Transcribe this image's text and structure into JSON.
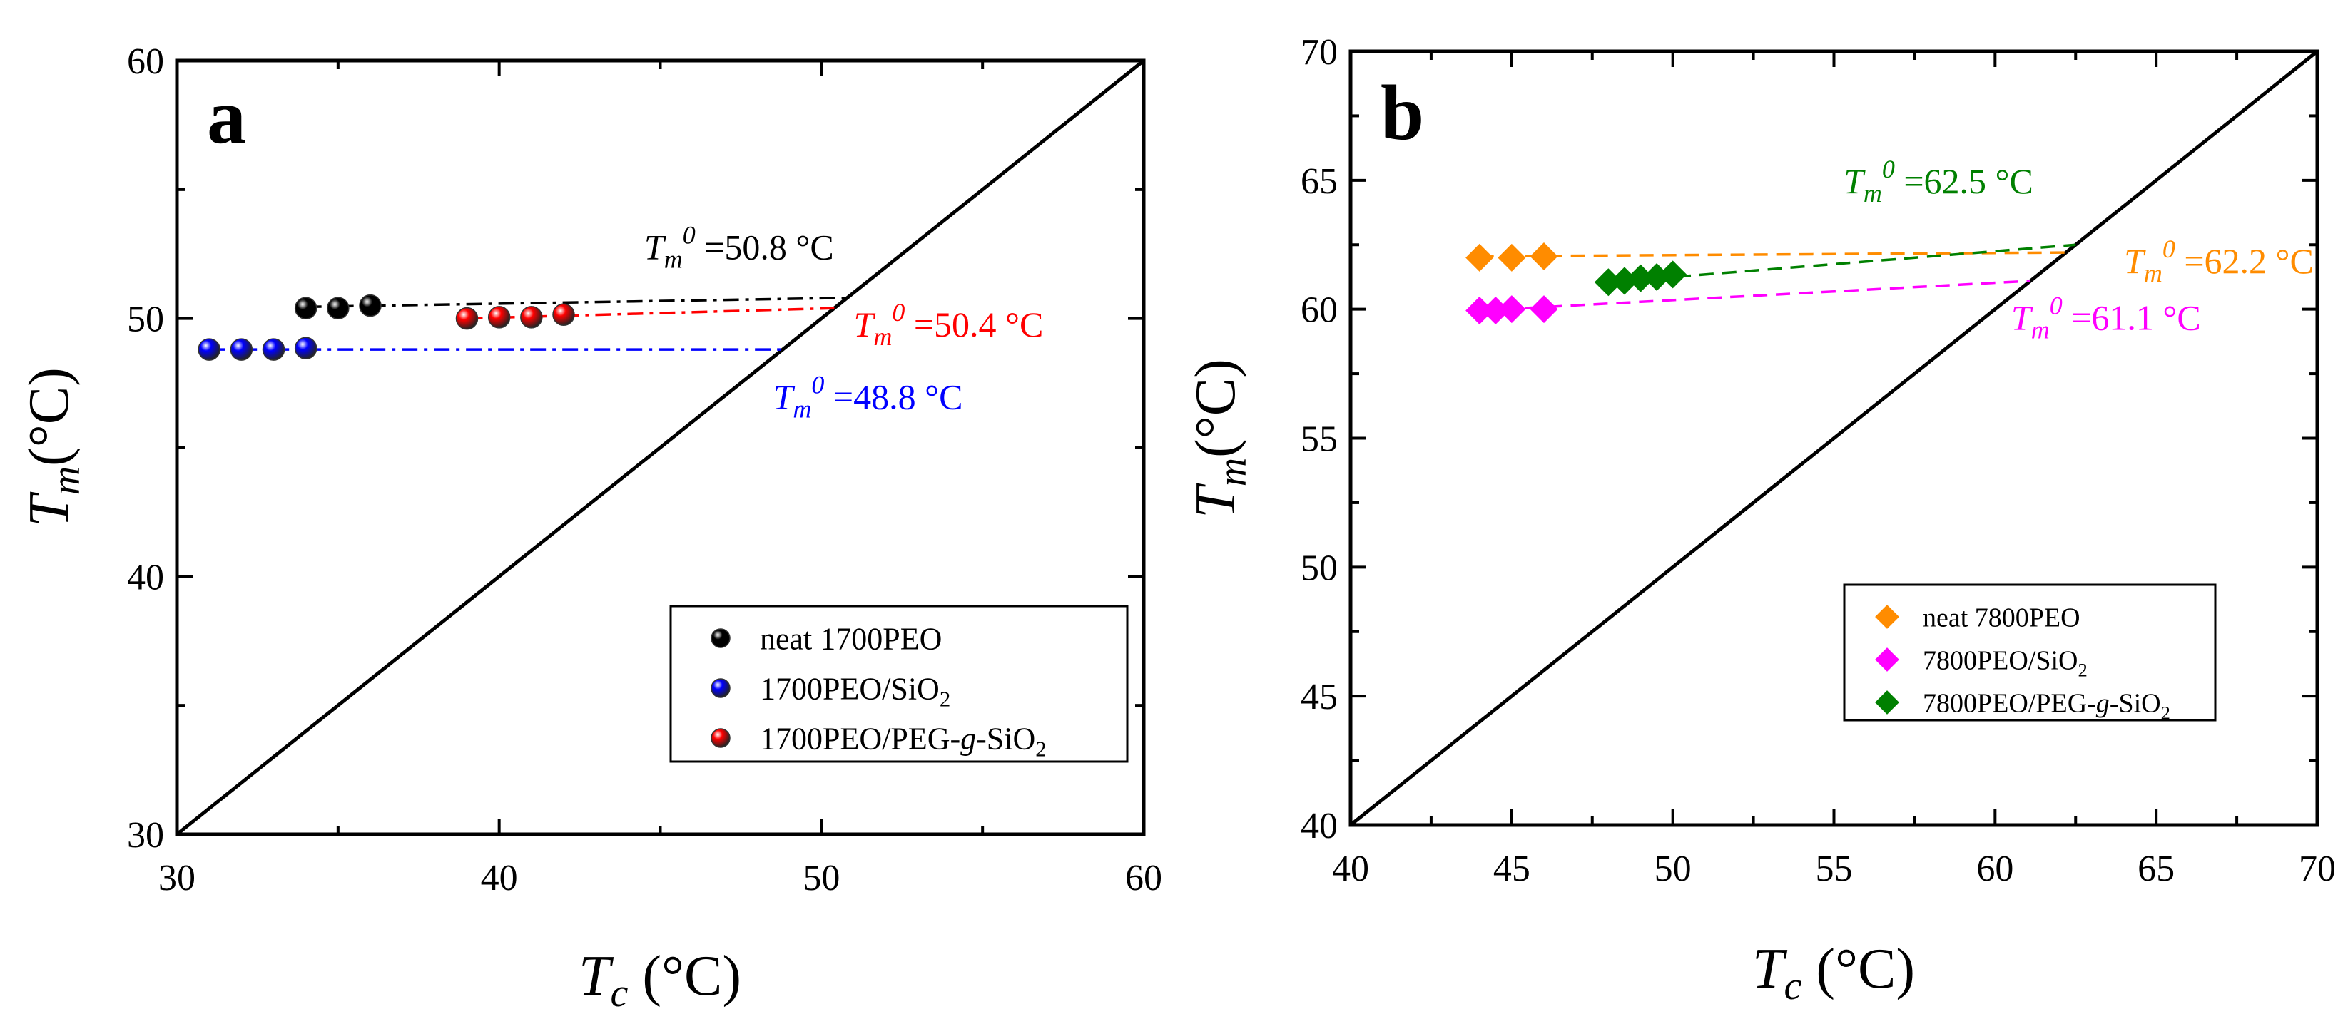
{
  "chart_data": [
    {
      "type": "scatter",
      "panel_label": "a",
      "xlabel": {
        "main": "T",
        "sub": "c",
        "rest": " (°C)"
      },
      "ylabel": {
        "main": "T",
        "sub": "m",
        "rest": "(°C)"
      },
      "xlim": [
        30,
        60
      ],
      "ylim": [
        30,
        60
      ],
      "xticks": [
        30,
        40,
        50,
        60
      ],
      "yticks": [
        30,
        40,
        50,
        60
      ],
      "diagonal": true,
      "grid": false,
      "legend_position": "lower-right",
      "series": [
        {
          "name": {
            "pre": "neat 1700PEO",
            "italic": "",
            "post": "",
            "sub": ""
          },
          "color": "#000000",
          "marker": "sphere",
          "points": [
            [
              34,
              50.4
            ],
            [
              35,
              50.4
            ],
            [
              36,
              50.5
            ]
          ],
          "fit": {
            "x": [
              34,
              50.8
            ],
            "y": [
              50.45,
              50.8
            ],
            "dash": "dashdot"
          }
        },
        {
          "name": {
            "pre": "1700PEO/SiO",
            "italic": "",
            "post": "",
            "sub": "2"
          },
          "color": "#0000ff",
          "marker": "sphere",
          "points": [
            [
              31,
              48.8
            ],
            [
              32,
              48.8
            ],
            [
              33,
              48.8
            ],
            [
              34,
              48.85
            ]
          ],
          "fit": {
            "x": [
              31,
              48.8
            ],
            "y": [
              48.8,
              48.8
            ],
            "dash": "dashdot"
          }
        },
        {
          "name": {
            "pre": "1700PEO/PEG-",
            "italic": "g",
            "post": "-SiO",
            "sub": "2"
          },
          "color": "#ff0000",
          "marker": "sphere",
          "points": [
            [
              39,
              50.0
            ],
            [
              40,
              50.05
            ],
            [
              41,
              50.05
            ],
            [
              42,
              50.15
            ]
          ],
          "fit": {
            "x": [
              39,
              50.4
            ],
            "y": [
              50.0,
              50.4
            ],
            "dash": "dashdot"
          }
        }
      ],
      "annotations": [
        {
          "prefix": "T",
          "sub": "m",
          "sup": "0",
          "value": "=50.8 °C",
          "color": "#000000",
          "x": 44.5,
          "y": 52.3
        },
        {
          "prefix": "T",
          "sub": "m",
          "sup": "0",
          "value": "=50.4 °C",
          "color": "#ff0000",
          "x": 51.0,
          "y": 49.3
        },
        {
          "prefix": "T",
          "sub": "m",
          "sup": "0",
          "value": "=48.8 °C",
          "color": "#0000ff",
          "x": 48.5,
          "y": 46.5
        }
      ]
    },
    {
      "type": "scatter",
      "panel_label": "b",
      "xlabel": {
        "main": "T",
        "sub": "c",
        "rest": " (°C)"
      },
      "ylabel": {
        "main": "T",
        "sub": "m",
        "rest": "(°C)"
      },
      "xlim": [
        40,
        70
      ],
      "ylim": [
        40,
        70
      ],
      "xticks": [
        40,
        45,
        50,
        55,
        60,
        65,
        70
      ],
      "yticks": [
        40,
        45,
        50,
        55,
        60,
        65,
        70
      ],
      "diagonal": true,
      "grid": false,
      "legend_position": "lower-right",
      "series": [
        {
          "name": {
            "pre": "neat 7800PEO",
            "italic": "",
            "post": "",
            "sub": ""
          },
          "color": "#ff8c00",
          "marker": "diamond",
          "points": [
            [
              44,
              62.0
            ],
            [
              45,
              62.0
            ],
            [
              46,
              62.05
            ]
          ],
          "fit": {
            "x": [
              44,
              62.2
            ],
            "y": [
              62.05,
              62.2
            ],
            "dash": "dash"
          }
        },
        {
          "name": {
            "pre": "7800PEO/SiO",
            "italic": "",
            "post": "",
            "sub": "2"
          },
          "color": "#ff00ff",
          "marker": "diamond",
          "points": [
            [
              44,
              59.95
            ],
            [
              44.5,
              59.95
            ],
            [
              45,
              60.0
            ],
            [
              46,
              60.0
            ]
          ],
          "fit": {
            "x": [
              44,
              61.1
            ],
            "y": [
              59.95,
              61.1
            ],
            "dash": "dash"
          }
        },
        {
          "name": {
            "pre": "7800PEO/PEG-",
            "italic": "g",
            "post": "-SiO",
            "sub": "2"
          },
          "color": "#008000",
          "marker": "diamond",
          "points": [
            [
              48,
              61.05
            ],
            [
              48.5,
              61.1
            ],
            [
              49,
              61.2
            ],
            [
              49.5,
              61.25
            ],
            [
              50,
              61.35
            ]
          ],
          "fit": {
            "x": [
              48,
              62.5
            ],
            "y": [
              61.05,
              62.5
            ],
            "dash": "dash"
          }
        }
      ],
      "annotations": [
        {
          "prefix": "T",
          "sub": "m",
          "sup": "0",
          "value": "=62.5 °C",
          "color": "#008000",
          "x": 55.3,
          "y": 64.5
        },
        {
          "prefix": "T",
          "sub": "m",
          "sup": "0",
          "value": "=62.2 °C",
          "color": "#ff8c00",
          "x": 64.0,
          "y": 61.4
        },
        {
          "prefix": "T",
          "sub": "m",
          "sup": "0",
          "value": "=61.1 °C",
          "color": "#ff00ff",
          "x": 60.5,
          "y": 59.2
        }
      ]
    }
  ]
}
